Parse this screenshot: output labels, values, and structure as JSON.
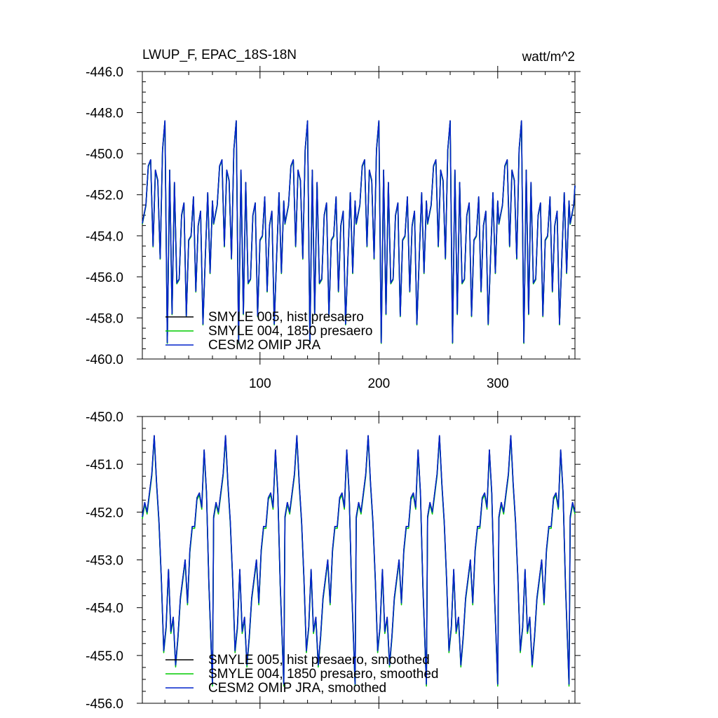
{
  "figure": {
    "title_left": "LWUP_F, EPAC_18S-18N",
    "title_right": "watt/m^2"
  },
  "chart_data": [
    {
      "type": "line",
      "title": "LWUP_F, EPAC_18S-18N",
      "units": "watt/m^2",
      "xlim": [
        1,
        365
      ],
      "ylim": [
        -460.0,
        -446.0
      ],
      "x_ticks": [
        100,
        200,
        300
      ],
      "x_tick_labels": [
        "100",
        "200",
        "300"
      ],
      "y_ticks": [
        -446.0,
        -448.0,
        -450.0,
        -452.0,
        -454.0,
        -456.0,
        -458.0,
        -460.0
      ],
      "y_tick_labels": [
        "-446.0",
        "-448.0",
        "-450.0",
        "-452.0",
        "-454.0",
        "-456.0",
        "-458.0",
        "-460.0"
      ],
      "legend_position": "bottom-left",
      "period_days": 60,
      "x_knots": [
        1,
        4,
        6,
        8,
        10,
        12,
        14,
        16,
        18,
        20,
        22,
        24,
        26,
        28,
        30,
        32,
        34,
        36,
        38,
        40,
        42,
        44,
        46,
        48,
        50,
        52,
        54,
        56,
        58,
        60
      ],
      "base_cycle": [
        -453.4,
        -452.5,
        -450.6,
        -450.3,
        -454.5,
        -450.8,
        -451.3,
        -455.1,
        -449.8,
        -448.4,
        -459.2,
        -450.8,
        -457.8,
        -451.4,
        -456.3,
        -456.1,
        -453.0,
        -452.4,
        -457.9,
        -454.2,
        -454.0,
        -452.1,
        -456.7,
        -453.5,
        -452.8,
        -458.3,
        -455.0,
        -451.9,
        -455.8,
        -452.3
      ],
      "series": [
        {
          "name": "SMYLE 005, hist presaero",
          "color": "#000000",
          "offset": 0.0
        },
        {
          "name": "SMYLE 004, 1850 presaero",
          "color": "#00cc00",
          "offset": -0.04
        },
        {
          "name": "CESM2 OMIP JRA",
          "color": "#0022cc",
          "offset": 0.0
        }
      ]
    },
    {
      "type": "line",
      "title": "",
      "xlim": [
        1,
        365
      ],
      "ylim": [
        -456.0,
        -450.0
      ],
      "x_ticks": [
        100,
        200,
        300
      ],
      "y_ticks": [
        -450.0,
        -451.0,
        -452.0,
        -453.0,
        -454.0,
        -455.0,
        -456.0
      ],
      "y_tick_labels": [
        "-450.0",
        "-451.0",
        "-452.0",
        "-453.0",
        "-454.0",
        "-455.0",
        "-456.0"
      ],
      "legend_position": "bottom-left",
      "period_days": 60,
      "x_knots": [
        1,
        3,
        5,
        7,
        9,
        11,
        13,
        15,
        17,
        19,
        21,
        23,
        25,
        27,
        29,
        31,
        33,
        35,
        37,
        39,
        41,
        43,
        45,
        47,
        49,
        51,
        53,
        55,
        57,
        60
      ],
      "base_cycle": [
        -452.1,
        -451.8,
        -452.0,
        -451.6,
        -451.2,
        -450.4,
        -451.4,
        -452.2,
        -453.4,
        -454.9,
        -454.4,
        -453.2,
        -454.5,
        -454.2,
        -455.2,
        -454.6,
        -453.8,
        -453.4,
        -453.0,
        -453.9,
        -452.8,
        -452.3,
        -452.3,
        -451.7,
        -451.6,
        -451.9,
        -450.7,
        -451.6,
        -453.5,
        -455.6
      ],
      "series": [
        {
          "name": "SMYLE 005, hist presaero, smoothed",
          "color": "#000000",
          "offset": 0.0
        },
        {
          "name": "SMYLE 004, 1850 presaero, smoothed",
          "color": "#00cc00",
          "offset": -0.04
        },
        {
          "name": "CESM2 OMIP JRA, smoothed",
          "color": "#0022cc",
          "offset": 0.0
        }
      ]
    }
  ]
}
